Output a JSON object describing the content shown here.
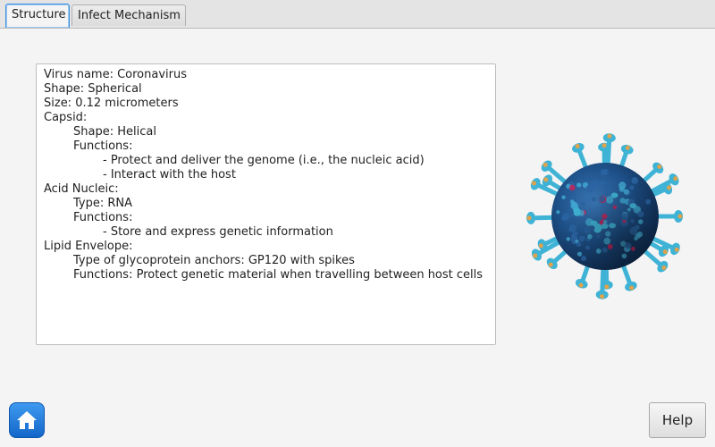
{
  "tabs": [
    {
      "label": "Structure",
      "active": true
    },
    {
      "label": "Infect Mechanism",
      "active": false
    }
  ],
  "info": {
    "lines": [
      {
        "text": "Virus name: Coronavirus",
        "level": 0
      },
      {
        "text": "Shape: Spherical",
        "level": 0
      },
      {
        "text": "Size: 0.12 micrometers",
        "level": 0
      },
      {
        "text": "Capsid:",
        "level": 0
      },
      {
        "text": "Shape: Helical",
        "level": 1
      },
      {
        "text": "Functions:",
        "level": 1
      },
      {
        "text": "- Protect and deliver the genome (i.e., the nucleic acid)",
        "level": 2
      },
      {
        "text": "- Interact with the host",
        "level": 2
      },
      {
        "text": "Acid Nucleic:",
        "level": 0
      },
      {
        "text": "Type: RNA",
        "level": 1
      },
      {
        "text": "Functions:",
        "level": 1
      },
      {
        "text": "- Store and express genetic information",
        "level": 2
      },
      {
        "text": "Lipid Envelope:",
        "level": 0
      },
      {
        "text": "Type of glycoprotein anchors: GP120 with spikes",
        "level": 1
      },
      {
        "text": "Functions: Protect genetic material when travelling between host cells",
        "level": 1
      }
    ]
  },
  "image": {
    "name": "coronavirus-image"
  },
  "buttons": {
    "home_icon": "home-icon",
    "help_label": "Help"
  },
  "colors": {
    "active_tab_border": "#3d8ee0",
    "home_button": "#1f78dc",
    "virus_body": "#1d4f86",
    "virus_spike": "#3fb3d6",
    "virus_spike_tip": "#e0a24a"
  }
}
